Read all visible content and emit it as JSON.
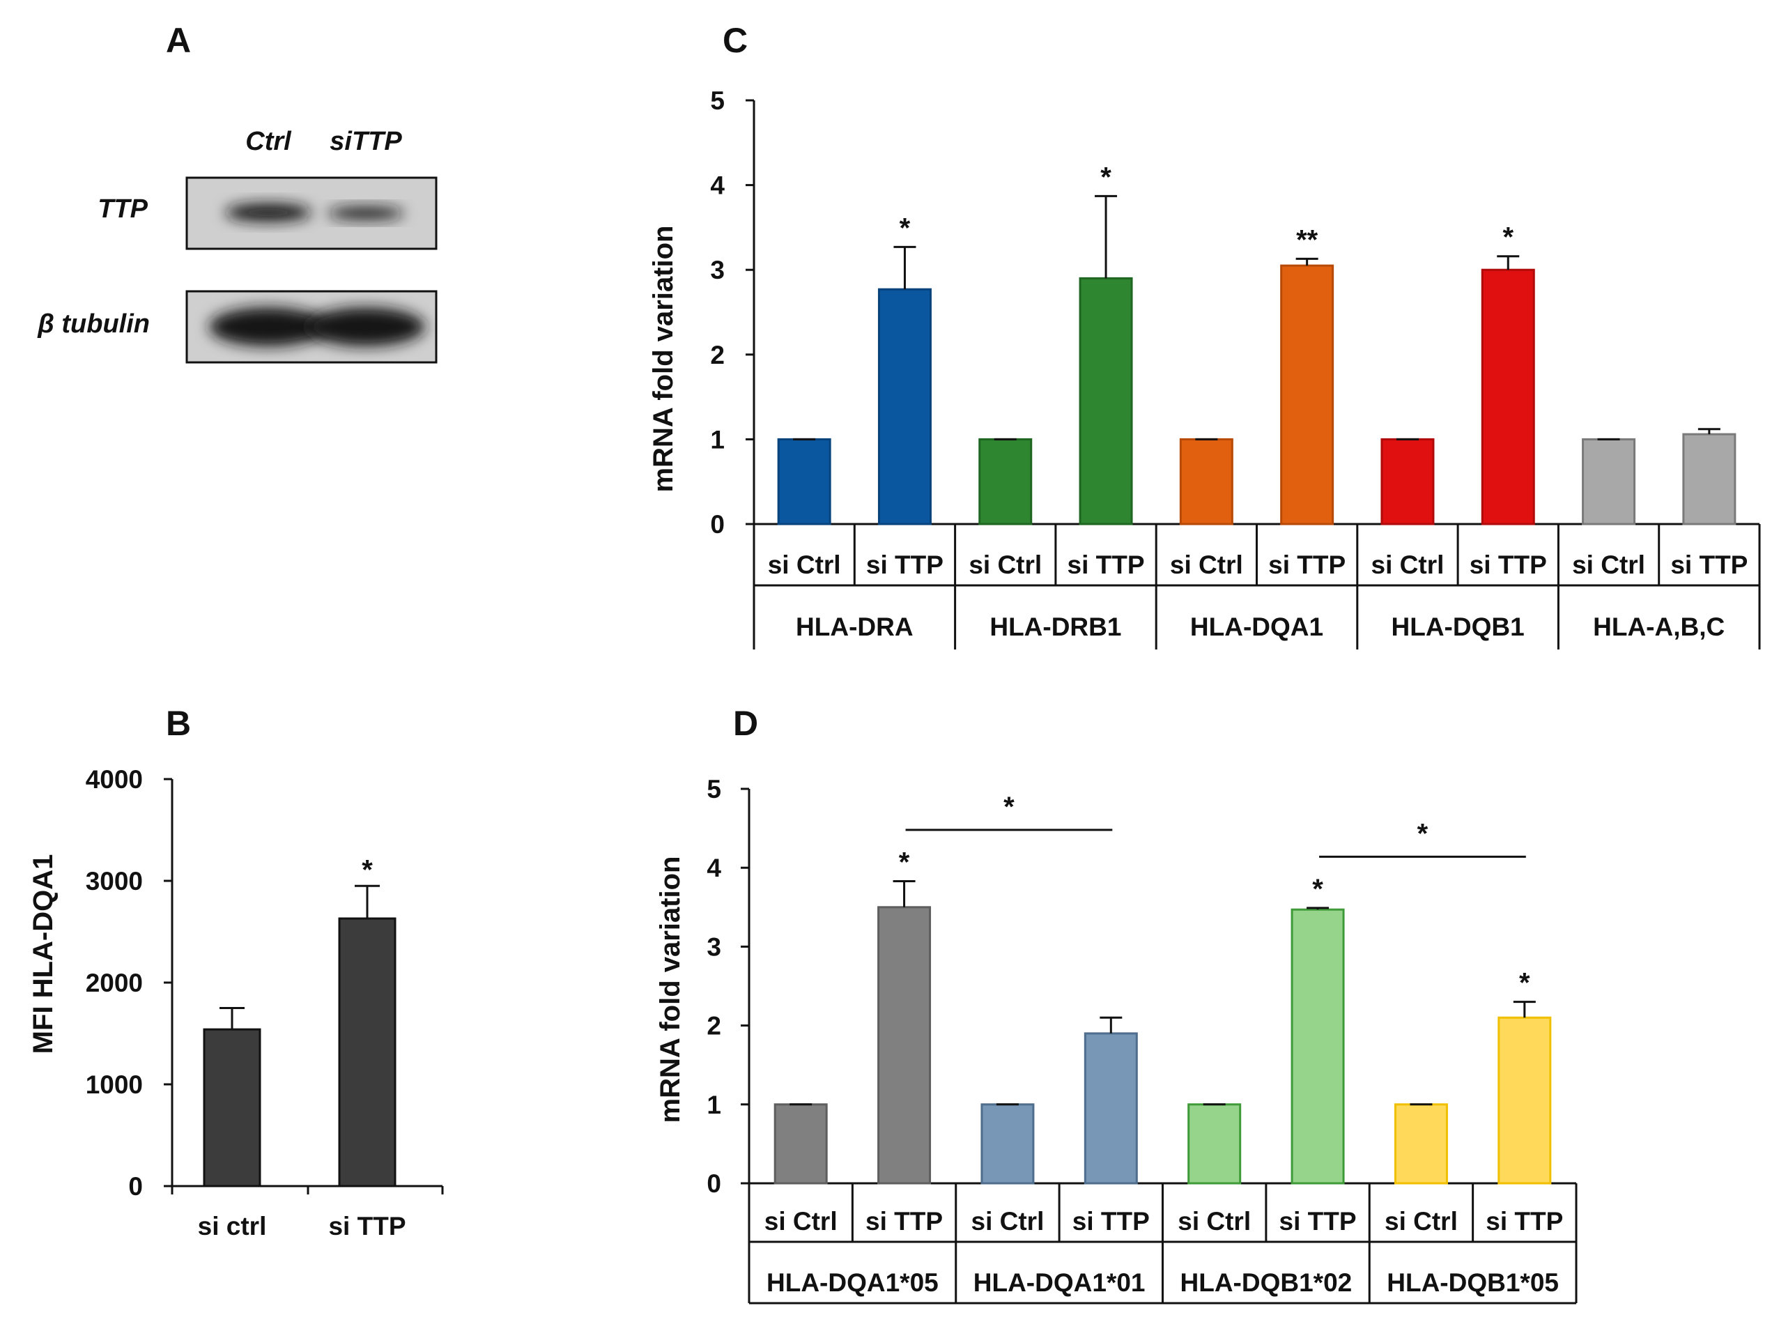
{
  "panel_letters": {
    "a": "A",
    "b": "B",
    "c": "C",
    "d": "D"
  },
  "blot": {
    "columns": [
      "Ctrl",
      "siTTP"
    ],
    "rows": [
      {
        "label": "TTP",
        "intensities": [
          0.85,
          0.12
        ]
      },
      {
        "label": "β tubulin",
        "intensities": [
          1.0,
          1.0
        ]
      }
    ]
  },
  "colors": {
    "axis": "#111111",
    "b_bar": "#3c3c3c",
    "c": [
      "#0a57a0",
      "#2e8630",
      "#e06010",
      "#e01010",
      "#a8a8a8"
    ],
    "c_edge": [
      "#08437c",
      "#1f6622",
      "#b84a08",
      "#b00a0a",
      "#7a7a7a"
    ],
    "d": [
      "#808080",
      "#7896b5",
      "#96d48c",
      "#ffd95a"
    ],
    "d_edge": [
      "#5e5e5e",
      "#4f6d8c",
      "#3f9a38",
      "#f0c000"
    ]
  },
  "chart_data": [
    {
      "id": "B",
      "type": "bar",
      "ylabel": "MFI HLA-DQA1",
      "ylim": [
        0,
        4000
      ],
      "yticks": [
        0,
        1000,
        2000,
        3000,
        4000
      ],
      "categories": [
        "si ctrl",
        "si TTP"
      ],
      "values": [
        1540,
        2630
      ],
      "errors": [
        210,
        320
      ],
      "significance": [
        "",
        "*"
      ]
    },
    {
      "id": "C",
      "type": "bar",
      "ylabel": "mRNA fold variation",
      "ylim": [
        0,
        5
      ],
      "yticks": [
        0,
        1,
        2,
        3,
        4,
        5
      ],
      "groups": [
        "HLA-DRA",
        "HLA-DRB1",
        "HLA-DQA1",
        "HLA-DQB1",
        "HLA-A,B,C"
      ],
      "series_labels": [
        "si Ctrl",
        "si TTP"
      ],
      "series": [
        {
          "name": "si Ctrl",
          "values": [
            1,
            1,
            1,
            1,
            1
          ],
          "errors": [
            0,
            0,
            0,
            0,
            0
          ]
        },
        {
          "name": "si TTP",
          "values": [
            2.77,
            2.9,
            3.05,
            3.0,
            1.06
          ],
          "errors": [
            0.5,
            0.97,
            0.08,
            0.16,
            0.06
          ]
        }
      ],
      "significance": [
        "*",
        "*",
        "**",
        "*",
        ""
      ]
    },
    {
      "id": "D",
      "type": "bar",
      "ylabel": "mRNA fold variation",
      "ylim": [
        0,
        5
      ],
      "yticks": [
        0,
        1,
        2,
        3,
        4,
        5
      ],
      "groups": [
        "HLA-DQA1*05",
        "HLA-DQA1*01",
        "HLA-DQB1*02",
        "HLA-DQB1*05"
      ],
      "series_labels": [
        "si Ctrl",
        "si TTP"
      ],
      "series": [
        {
          "name": "si Ctrl",
          "values": [
            1,
            1,
            1,
            1
          ],
          "errors": [
            0,
            0,
            0,
            0
          ]
        },
        {
          "name": "si TTP",
          "values": [
            3.5,
            1.9,
            3.47,
            2.1
          ],
          "errors": [
            0.33,
            0.2,
            0.02,
            0.2
          ]
        }
      ],
      "significance": [
        "*",
        "",
        "*",
        "*"
      ],
      "brackets": [
        {
          "from_group": 0,
          "to_group": 1,
          "label": "*"
        },
        {
          "from_group": 2,
          "to_group": 3,
          "label": "*"
        }
      ]
    }
  ]
}
